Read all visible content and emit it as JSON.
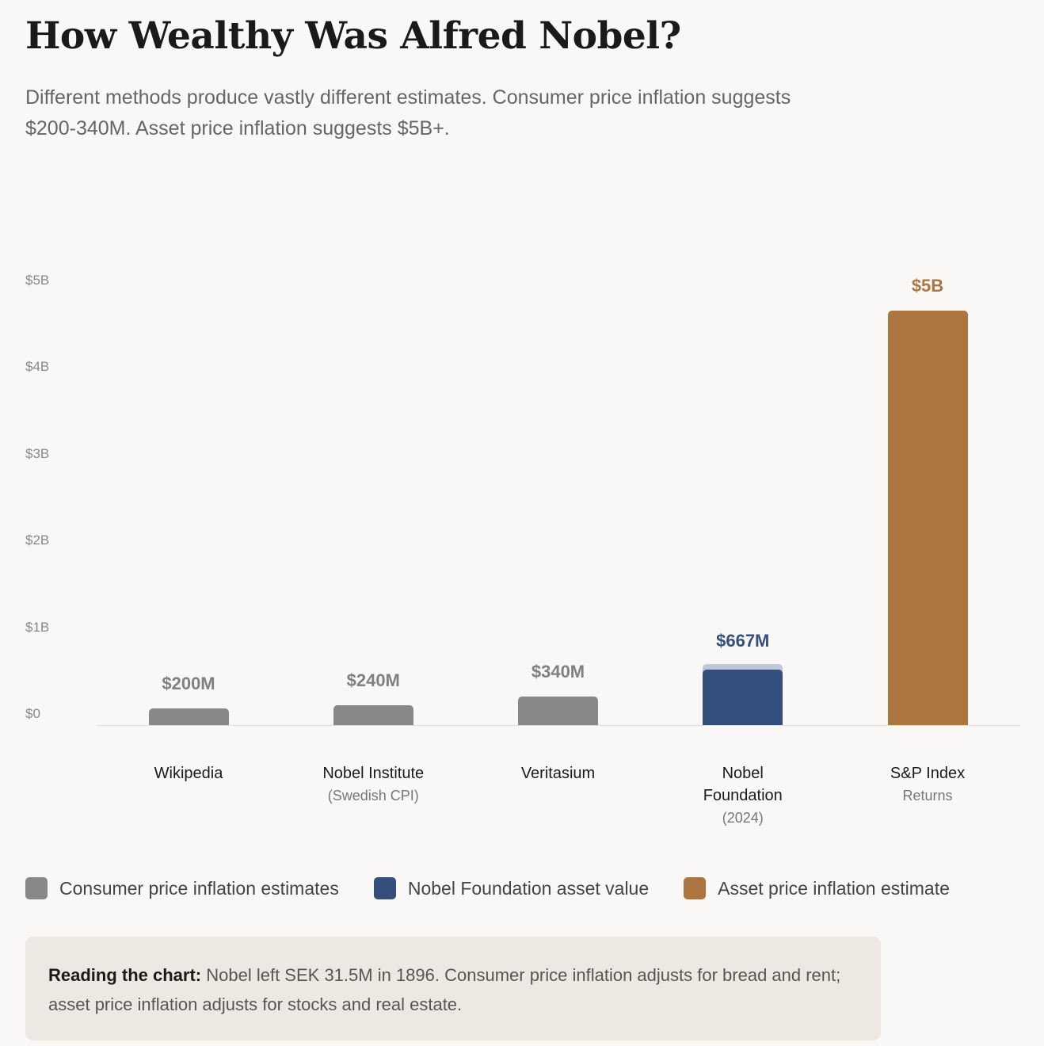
{
  "title": "How Wealthy Was Alfred Nobel?",
  "subtitle": "Different methods produce vastly different estimates. Consumer price inflation suggests $200-340M. Asset price inflation suggests $5B+.",
  "chart_data": {
    "type": "bar",
    "unit": "USD millions",
    "ylim": [
      0,
      5000
    ],
    "yticks": [
      {
        "value": 0,
        "label": "$0"
      },
      {
        "value": 1000,
        "label": "$1B"
      },
      {
        "value": 2000,
        "label": "$2B"
      },
      {
        "value": 3000,
        "label": "$3B"
      },
      {
        "value": 4000,
        "label": "$4B"
      },
      {
        "value": 5000,
        "label": "$5B"
      }
    ],
    "grid": false,
    "legend_position": "bottom",
    "bars": [
      {
        "category": "Wikipedia",
        "sub": "",
        "value": 200,
        "label": "$200M",
        "series": 0
      },
      {
        "category": "Nobel Institute",
        "sub": "(Swedish CPI)",
        "value": 240,
        "label": "$240M",
        "series": 0
      },
      {
        "category": "Veritasium",
        "sub": "",
        "value": 340,
        "label": "$340M",
        "series": 0
      },
      {
        "category": "Nobel Foundation",
        "sub": "(2024)",
        "value": 667,
        "label": "$667M",
        "series": 1
      },
      {
        "category": "S&P Index",
        "sub": "Returns",
        "value": 5000,
        "label": "$5B",
        "series": 2
      }
    ],
    "series": [
      {
        "name": "Consumer price inflation estimates",
        "color": "#888888",
        "label_color": "#808080"
      },
      {
        "name": "Nobel Foundation asset value",
        "color": "#344f7c",
        "label_color": "#344f7c"
      },
      {
        "name": "Asset price inflation estimate",
        "color": "#ad7640",
        "label_color": "#ad7640"
      }
    ]
  },
  "note": {
    "bold": "Reading the chart:",
    "text": " Nobel left SEK 31.5M in 1896. Consumer price inflation adjusts for bread and rent; asset price inflation adjusts for stocks and real estate."
  }
}
